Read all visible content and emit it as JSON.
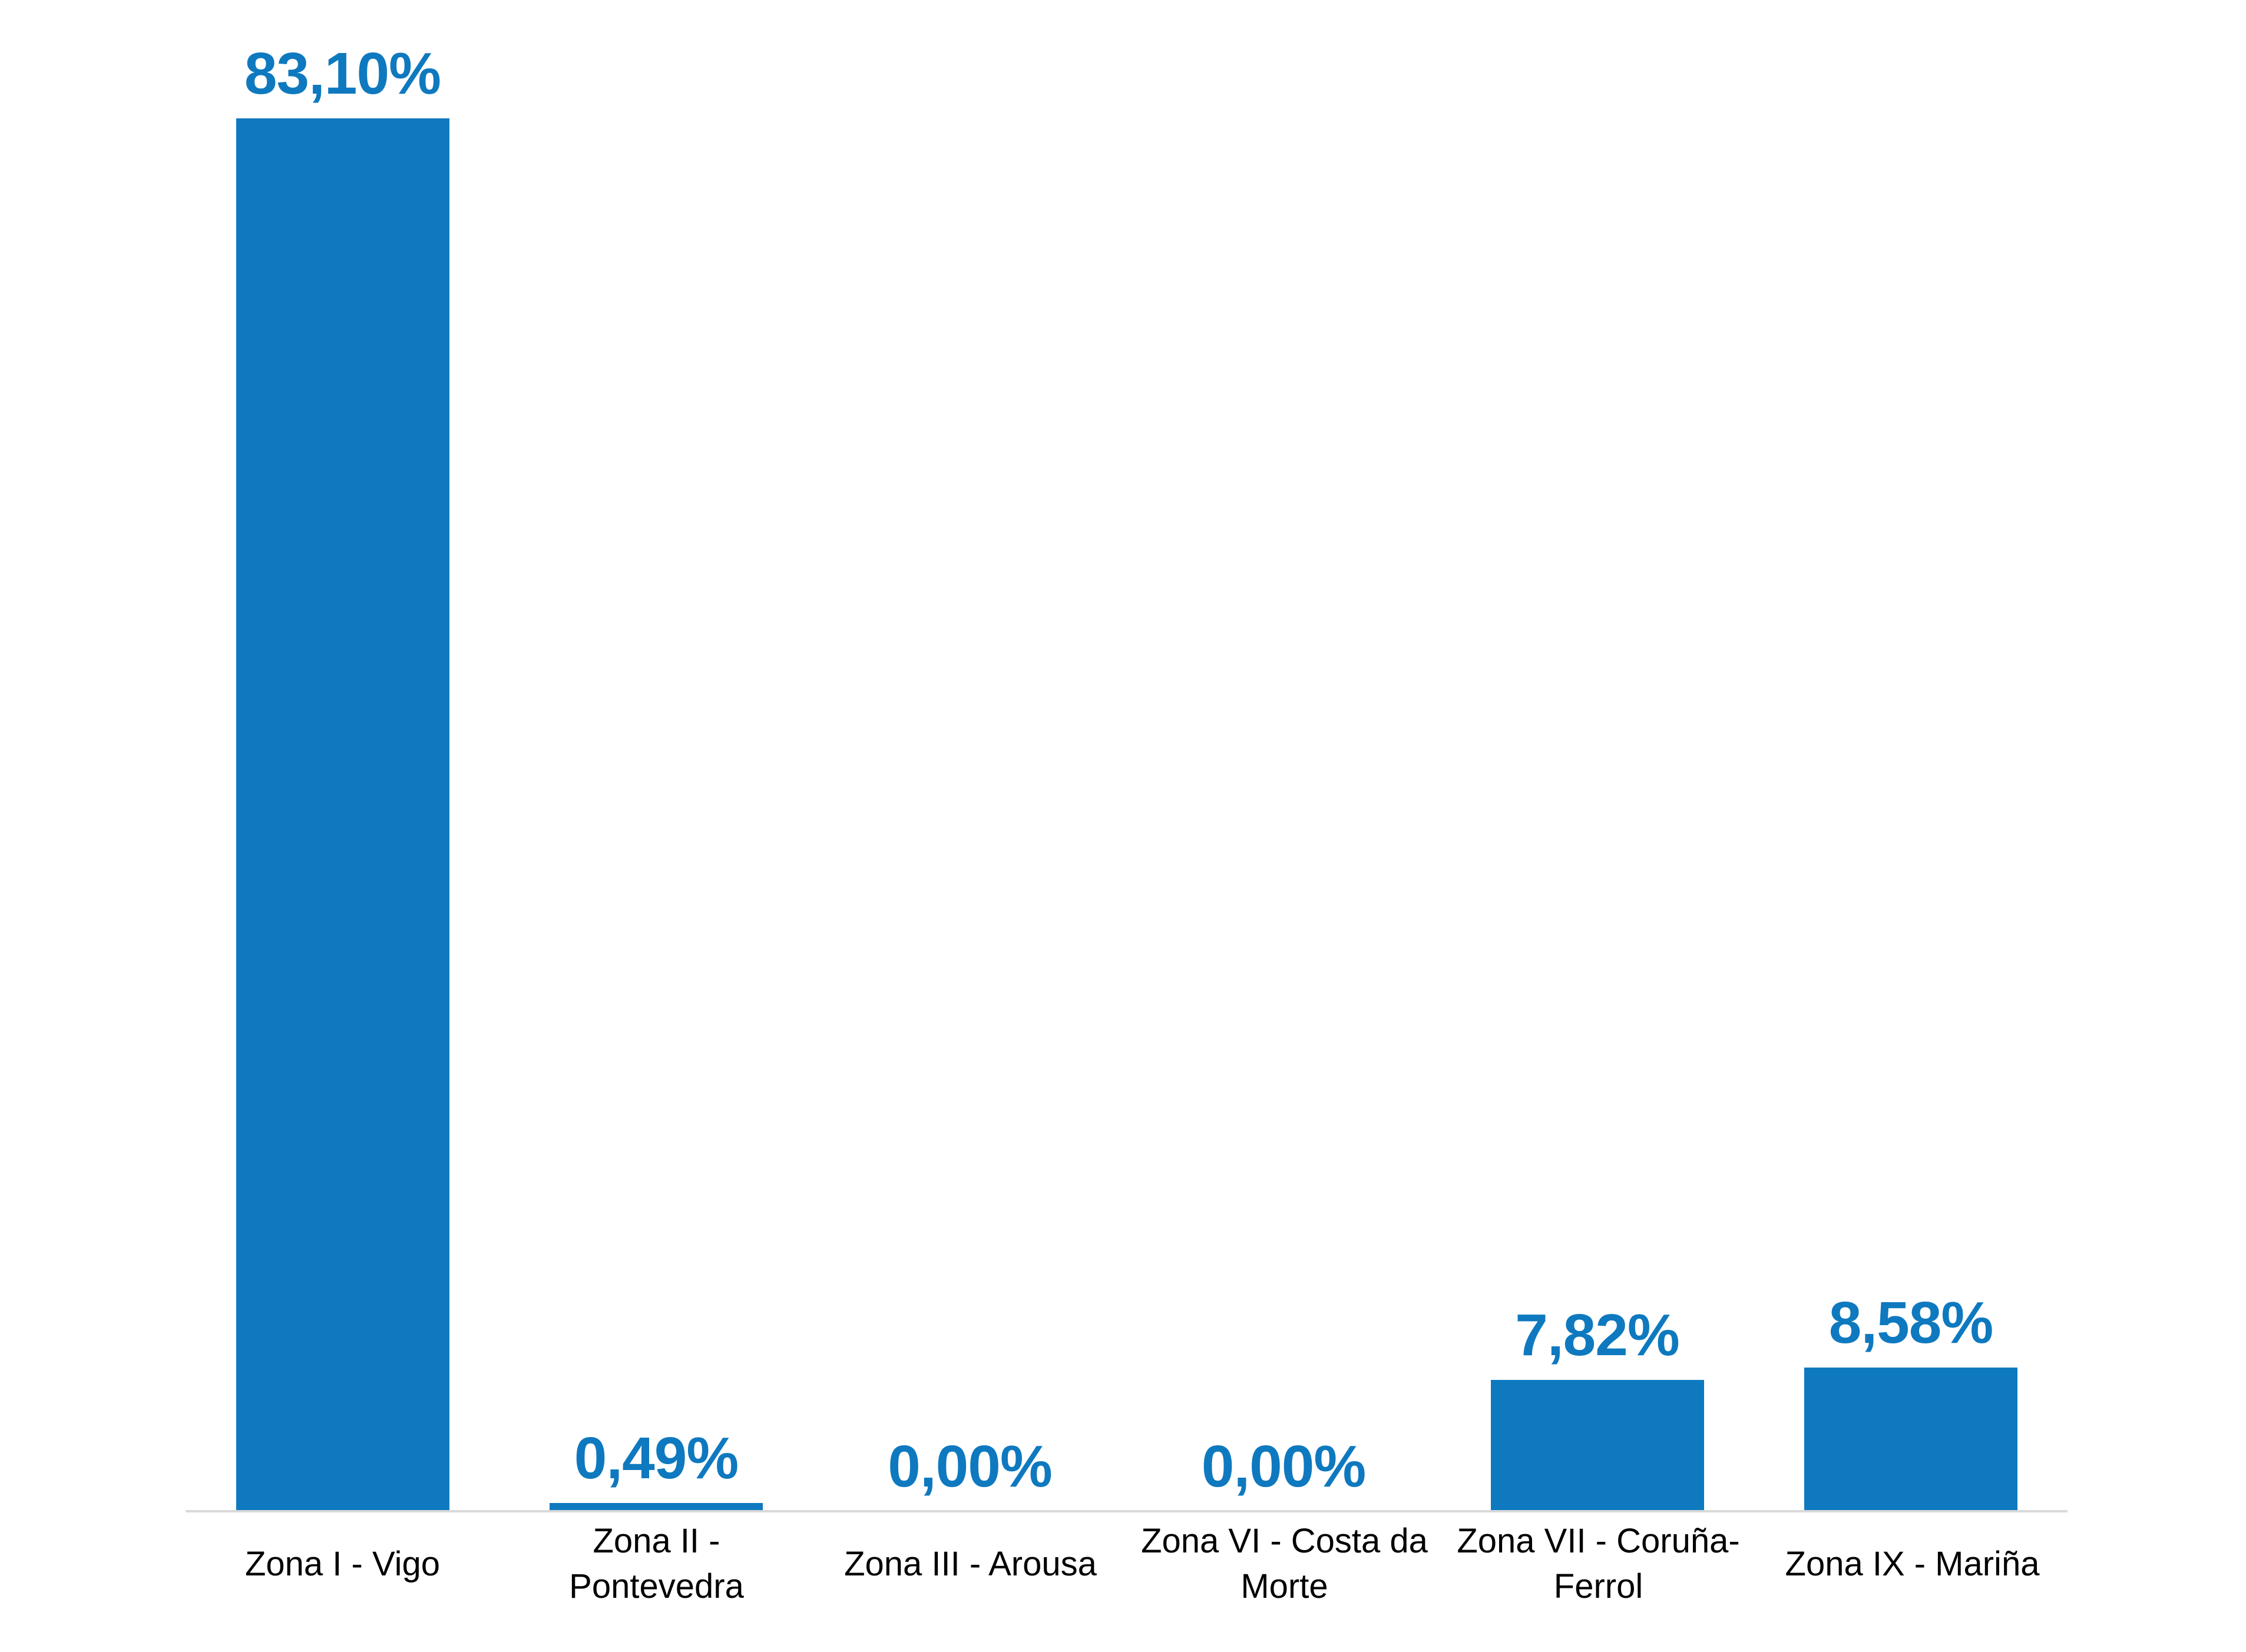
{
  "chart_data": {
    "type": "bar",
    "title": "",
    "xlabel": "",
    "ylabel": "",
    "categories": [
      "Zona I - Vigo",
      "Zona II - Pontevedra",
      "Zona III - Arousa",
      "Zona VI - Costa da Morte",
      "Zona VII - Coruña-Ferrol",
      "Zona IX - Mariña"
    ],
    "tick_labels_display": [
      "Zona I - Vigo",
      "Zona II -\nPontevedra",
      "Zona III - Arousa",
      "Zona VI - Costa da\nMorte",
      "Zona VII - Coruña-\nFerrol",
      "Zona IX - Mariña"
    ],
    "values": [
      83.1,
      0.49,
      0.0,
      0.0,
      7.82,
      8.58
    ],
    "value_labels": [
      "83,10%",
      "0,49%",
      "0,00%",
      "0,00%",
      "7,82%",
      "8,58%"
    ],
    "ylim": [
      0,
      90
    ],
    "grid": false,
    "legend_position": "none",
    "bar_color": "#0e79bf",
    "value_label_color": "#0e79bf",
    "tick_label_color": "#000000",
    "axis_line_color": "#d9d9d9",
    "background_color": "#ffffff"
  }
}
